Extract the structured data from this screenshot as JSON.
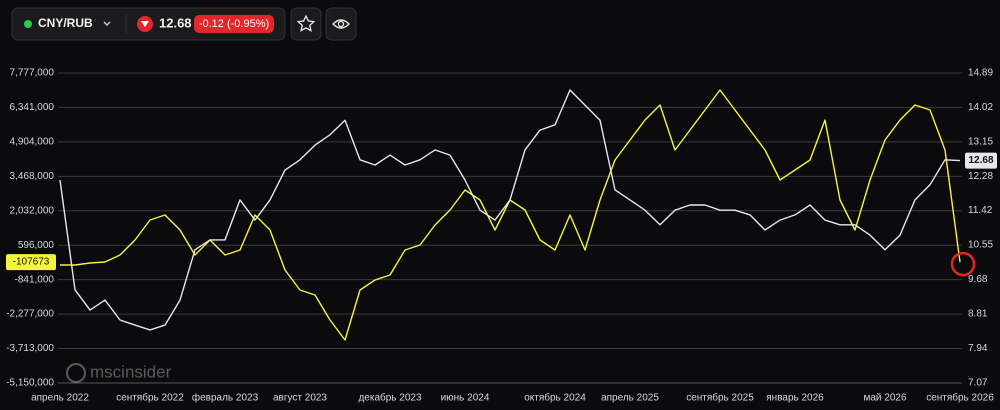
{
  "toolbar": {
    "symbol": "CNY/RUB",
    "price": "12.68",
    "change": "-0.12 (-0.95%)"
  },
  "watermark": "mscinsider",
  "chart_data": {
    "type": "line",
    "categories": [
      "апрель 2022",
      null,
      null,
      null,
      null,
      null,
      "сентябрь 2022",
      null,
      null,
      null,
      null,
      "февраль 2023",
      null,
      null,
      null,
      null,
      "август 2023",
      null,
      null,
      null,
      null,
      null,
      "декабрь 2023",
      null,
      null,
      null,
      null,
      "июнь 2024",
      null,
      null,
      null,
      null,
      null,
      "октябрь 2024",
      null,
      null,
      null,
      null,
      "апрель 2025",
      null,
      null,
      null,
      null,
      null,
      "сентябрь 2025",
      null,
      null,
      null,
      null,
      "январь 2026",
      null,
      null,
      null,
      null,
      null,
      "май 2026",
      null,
      null,
      null,
      null,
      "сентябрь 2026"
    ],
    "series": [
      {
        "color": "#f4f43c",
        "axis": "y",
        "values": [
          -229000,
          -229000,
          -146000,
          -104000,
          188000,
          813000,
          1647000,
          1856000,
          1230000,
          188000,
          813000,
          188000,
          396000,
          1856000,
          1230000,
          -438000,
          -1272000,
          -1480000,
          -2523000,
          -3357000,
          -1272000,
          -855000,
          -646000,
          396000,
          605000,
          1439000,
          2064000,
          2898000,
          2481000,
          1230000,
          2481000,
          2064000,
          813000,
          396000,
          1856000,
          396000,
          2481000,
          4149000,
          4983000,
          5817000,
          6443000,
          4566000,
          5400000,
          6234000,
          7068000,
          6234000,
          5400000,
          4566000,
          3315000,
          3732000,
          4149000,
          5817000,
          2481000,
          1230000,
          3315000,
          4983000,
          5817000,
          6443000,
          6234000,
          4566000,
          -107673
        ]
      },
      {
        "color": "#e6e6ec",
        "axis": "y2",
        "values": [
          12.19,
          9.42,
          8.91,
          9.16,
          8.66,
          8.53,
          8.41,
          8.53,
          9.16,
          10.43,
          10.68,
          10.68,
          11.69,
          11.18,
          11.69,
          12.44,
          12.7,
          13.07,
          13.33,
          13.7,
          12.7,
          12.57,
          12.82,
          12.57,
          12.7,
          12.95,
          12.82,
          12.19,
          11.43,
          11.18,
          11.69,
          12.95,
          13.45,
          13.58,
          14.46,
          14.08,
          13.7,
          11.94,
          11.69,
          11.43,
          11.06,
          11.43,
          11.56,
          11.56,
          11.43,
          11.43,
          11.31,
          10.93,
          11.18,
          11.31,
          11.56,
          11.18,
          11.06,
          11.06,
          10.8,
          10.43,
          10.8,
          11.69,
          12.07,
          12.7,
          12.68
        ]
      }
    ],
    "ylim": [
      -5150000,
      7777000
    ],
    "yticks": [
      {
        "value": 7777000,
        "label": "7,777,000"
      },
      {
        "value": 6341000,
        "label": "6,341,000"
      },
      {
        "value": 4904000,
        "label": "4,904,000"
      },
      {
        "value": 3468000,
        "label": "3,468,000"
      },
      {
        "value": 2032000,
        "label": "2,032,000"
      },
      {
        "value": 596000,
        "label": "596,000"
      },
      {
        "value": -841000,
        "label": "-841,000"
      },
      {
        "value": -2277000,
        "label": "-2,277,000"
      },
      {
        "value": -3713000,
        "label": "-3,713,000"
      },
      {
        "value": -5150000,
        "label": "-5,150,000"
      }
    ],
    "y2lim": [
      7.07,
      14.89
    ],
    "y2ticks": [
      14.89,
      14.02,
      13.15,
      12.28,
      11.42,
      10.55,
      9.68,
      8.81,
      7.94,
      7.07
    ],
    "grid": true
  }
}
